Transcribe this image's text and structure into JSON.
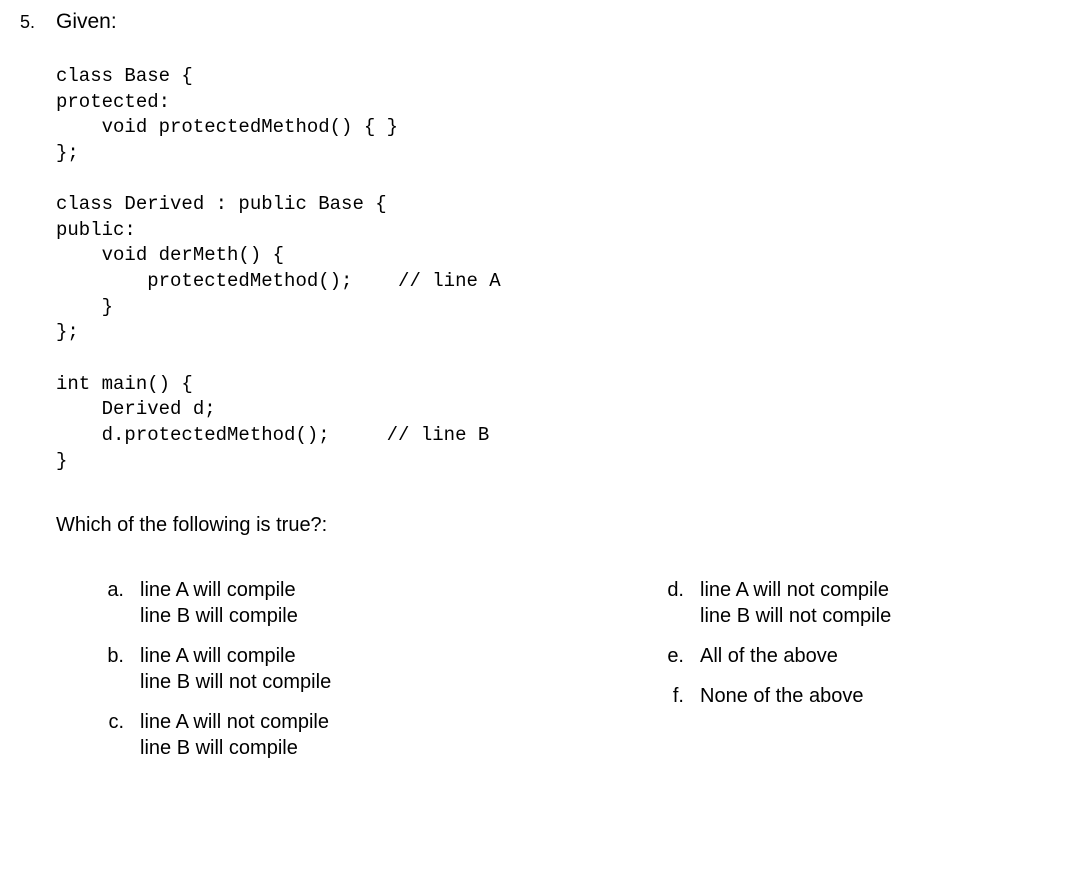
{
  "question_number": "5.",
  "question_label": "Given:",
  "code": "class Base {\nprotected:\n    void protectedMethod() { }\n};\n\nclass Derived : public Base {\npublic:\n    void derMeth() {\n        protectedMethod();    // line A\n    }\n};\n\nint main() {\n    Derived d;\n    d.protectedMethod();     // line B\n}",
  "question_text": "Which of the following is true?:",
  "answers_left": [
    {
      "letter": "a.",
      "text": "line A will compile\nline B will compile"
    },
    {
      "letter": "b.",
      "text": "line A will compile\nline B will not compile"
    },
    {
      "letter": "c.",
      "text": "line A will not compile\nline B will compile"
    }
  ],
  "answers_right": [
    {
      "letter": "d.",
      "text": "line A will not compile\nline B will not compile"
    },
    {
      "letter": "e.",
      "text": "All of the above"
    },
    {
      "letter": "f.",
      "text": "None of the above"
    }
  ]
}
